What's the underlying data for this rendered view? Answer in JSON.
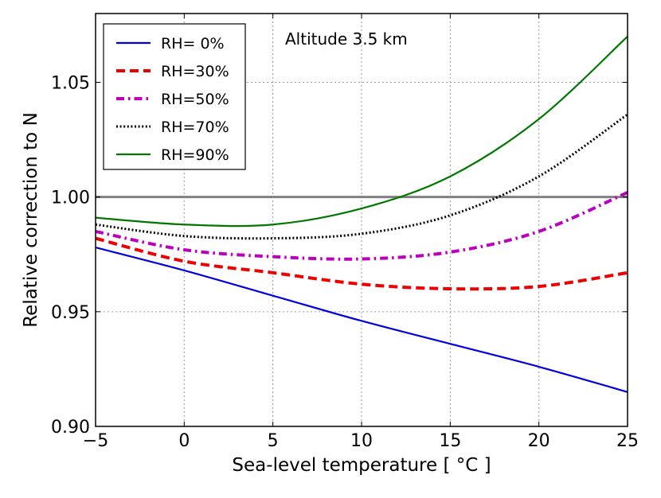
{
  "chart_data": {
    "type": "line",
    "title": "",
    "annotation": "Altitude 3.5 km",
    "xlabel": "Sea-level temperature [ °C ]",
    "ylabel": "Relative correction to N",
    "xlim": [
      -5,
      25
    ],
    "ylim": [
      0.9,
      1.08
    ],
    "xticks": [
      -5,
      0,
      5,
      10,
      15,
      20,
      25
    ],
    "xtick_labels": [
      "−5",
      "0",
      "5",
      "10",
      "15",
      "20",
      "25"
    ],
    "yticks": [
      0.9,
      0.95,
      1.0,
      1.05
    ],
    "ytick_labels": [
      "0.90",
      "0.95",
      "1.00",
      "1.05"
    ],
    "grid": true,
    "legend_position": "top-left",
    "reference_line": {
      "y": 1.0,
      "color": "#808080"
    },
    "x": [
      -5,
      0,
      5,
      10,
      15,
      20,
      25
    ],
    "series": [
      {
        "name": "RH= 0%",
        "label": "RH= 0%",
        "color": "#0000dd",
        "style": "solid",
        "values": [
          0.978,
          0.968,
          0.957,
          0.946,
          0.936,
          0.926,
          0.915
        ]
      },
      {
        "name": "RH=30%",
        "label": "RH=30%",
        "color": "#ee0000",
        "style": "dashed",
        "values": [
          0.982,
          0.972,
          0.967,
          0.962,
          0.96,
          0.961,
          0.967
        ]
      },
      {
        "name": "RH=50%",
        "label": "RH=50%",
        "color": "#bb00bb",
        "style": "dashdot",
        "values": [
          0.985,
          0.977,
          0.974,
          0.973,
          0.976,
          0.985,
          1.002
        ]
      },
      {
        "name": "RH=70%",
        "label": "RH=70%",
        "color": "#000000",
        "style": "dotted",
        "values": [
          0.988,
          0.983,
          0.982,
          0.984,
          0.992,
          1.009,
          1.036
        ]
      },
      {
        "name": "RH=90%",
        "label": "RH=90%",
        "color": "#007700",
        "style": "solid",
        "values": [
          0.991,
          0.988,
          0.988,
          0.995,
          1.009,
          1.034,
          1.07
        ]
      }
    ]
  }
}
